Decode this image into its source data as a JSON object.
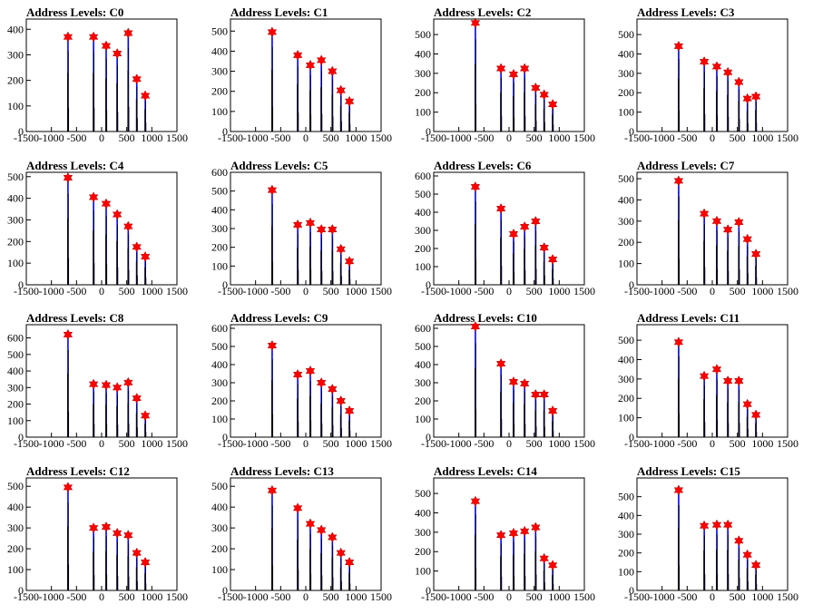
{
  "chart_data": [
    {
      "type": "histogram",
      "title": "Address Levels: C0",
      "xlim": [
        -1500,
        1500
      ],
      "ylim": [
        0,
        440
      ],
      "yticks": [
        0,
        100,
        200,
        300,
        400
      ],
      "xticks": [
        -1500,
        -1000,
        -500,
        0,
        500,
        1000,
        1500
      ],
      "peaks": [
        [
          -670,
          370
        ],
        [
          -160,
          370
        ],
        [
          90,
          335
        ],
        [
          310,
          305
        ],
        [
          530,
          385
        ],
        [
          700,
          205
        ],
        [
          870,
          140
        ]
      ]
    },
    {
      "type": "histogram",
      "title": "Address Levels: C1",
      "xlim": [
        -1500,
        1500
      ],
      "ylim": [
        0,
        560
      ],
      "yticks": [
        0,
        100,
        200,
        300,
        400,
        500
      ],
      "xticks": [
        -1500,
        -1000,
        -500,
        0,
        500,
        1000,
        1500
      ],
      "peaks": [
        [
          -670,
          495
        ],
        [
          -160,
          380
        ],
        [
          90,
          330
        ],
        [
          310,
          355
        ],
        [
          530,
          300
        ],
        [
          700,
          205
        ],
        [
          870,
          150
        ]
      ]
    },
    {
      "type": "histogram",
      "title": "Address Levels: C2",
      "xlim": [
        -1500,
        1500
      ],
      "ylim": [
        0,
        580
      ],
      "yticks": [
        0,
        100,
        200,
        300,
        400,
        500
      ],
      "xticks": [
        -1500,
        -1000,
        -500,
        0,
        500,
        1000,
        1500
      ],
      "peaks": [
        [
          -670,
          560
        ],
        [
          -160,
          325
        ],
        [
          90,
          295
        ],
        [
          310,
          325
        ],
        [
          530,
          225
        ],
        [
          700,
          190
        ],
        [
          870,
          140
        ]
      ]
    },
    {
      "type": "histogram",
      "title": "Address Levels: C3",
      "xlim": [
        -1500,
        1500
      ],
      "ylim": [
        0,
        580
      ],
      "yticks": [
        0,
        100,
        200,
        300,
        400,
        500
      ],
      "xticks": [
        -1500,
        -1000,
        -500,
        0,
        500,
        1000,
        1500
      ],
      "peaks": [
        [
          -670,
          440
        ],
        [
          -160,
          360
        ],
        [
          90,
          335
        ],
        [
          310,
          305
        ],
        [
          530,
          255
        ],
        [
          700,
          170
        ],
        [
          870,
          180
        ]
      ]
    },
    {
      "type": "histogram",
      "title": "Address Levels: C4",
      "xlim": [
        -1500,
        1500
      ],
      "ylim": [
        0,
        520
      ],
      "yticks": [
        0,
        100,
        200,
        300,
        400,
        500
      ],
      "xticks": [
        -1500,
        -1000,
        -500,
        0,
        500,
        1000,
        1500
      ],
      "peaks": [
        [
          -670,
          495
        ],
        [
          -160,
          405
        ],
        [
          90,
          375
        ],
        [
          310,
          325
        ],
        [
          530,
          270
        ],
        [
          700,
          175
        ],
        [
          870,
          130
        ]
      ]
    },
    {
      "type": "histogram",
      "title": "Address Levels: C5",
      "xlim": [
        -1500,
        1500
      ],
      "ylim": [
        0,
        600
      ],
      "yticks": [
        0,
        100,
        200,
        300,
        400,
        500,
        600
      ],
      "xticks": [
        -1500,
        -1000,
        -500,
        0,
        500,
        1000,
        1500
      ],
      "peaks": [
        [
          -670,
          505
        ],
        [
          -160,
          320
        ],
        [
          90,
          330
        ],
        [
          310,
          295
        ],
        [
          530,
          295
        ],
        [
          700,
          190
        ],
        [
          870,
          125
        ]
      ]
    },
    {
      "type": "histogram",
      "title": "Address Levels: C6",
      "xlim": [
        -1500,
        1500
      ],
      "ylim": [
        0,
        620
      ],
      "yticks": [
        0,
        100,
        200,
        300,
        400,
        500,
        600
      ],
      "xticks": [
        -1500,
        -1000,
        -500,
        0,
        500,
        1000,
        1500
      ],
      "peaks": [
        [
          -670,
          540
        ],
        [
          -160,
          420
        ],
        [
          90,
          280
        ],
        [
          310,
          320
        ],
        [
          530,
          350
        ],
        [
          700,
          205
        ],
        [
          870,
          140
        ]
      ]
    },
    {
      "type": "histogram",
      "title": "Address Levels: C7",
      "xlim": [
        -1500,
        1500
      ],
      "ylim": [
        0,
        530
      ],
      "yticks": [
        0,
        100,
        200,
        300,
        400,
        500
      ],
      "xticks": [
        -1500,
        -1000,
        -500,
        0,
        500,
        1000,
        1500
      ],
      "peaks": [
        [
          -670,
          490
        ],
        [
          -160,
          335
        ],
        [
          90,
          300
        ],
        [
          310,
          260
        ],
        [
          530,
          295
        ],
        [
          700,
          215
        ],
        [
          870,
          145
        ]
      ]
    },
    {
      "type": "histogram",
      "title": "Address Levels: C8",
      "xlim": [
        -1500,
        1500
      ],
      "ylim": [
        0,
        680
      ],
      "yticks": [
        0,
        100,
        200,
        300,
        400,
        500,
        600
      ],
      "xticks": [
        -1500,
        -1000,
        -500,
        0,
        500,
        1000,
        1500
      ],
      "peaks": [
        [
          -670,
          620
        ],
        [
          -160,
          320
        ],
        [
          90,
          315
        ],
        [
          310,
          300
        ],
        [
          530,
          330
        ],
        [
          700,
          235
        ],
        [
          870,
          130
        ]
      ]
    },
    {
      "type": "histogram",
      "title": "Address Levels: C9",
      "xlim": [
        -1500,
        1500
      ],
      "ylim": [
        0,
        620
      ],
      "yticks": [
        0,
        100,
        200,
        300,
        400,
        500,
        600
      ],
      "xticks": [
        -1500,
        -1000,
        -500,
        0,
        500,
        1000,
        1500
      ],
      "peaks": [
        [
          -670,
          505
        ],
        [
          -160,
          345
        ],
        [
          90,
          365
        ],
        [
          310,
          300
        ],
        [
          530,
          265
        ],
        [
          700,
          200
        ],
        [
          870,
          145
        ]
      ]
    },
    {
      "type": "histogram",
      "title": "Address Levels: C10",
      "xlim": [
        -1500,
        1500
      ],
      "ylim": [
        0,
        620
      ],
      "yticks": [
        0,
        100,
        200,
        300,
        400,
        500,
        600
      ],
      "xticks": [
        -1500,
        -1000,
        -500,
        0,
        500,
        1000,
        1500
      ],
      "peaks": [
        [
          -670,
          610
        ],
        [
          -160,
          405
        ],
        [
          90,
          305
        ],
        [
          310,
          295
        ],
        [
          530,
          235
        ],
        [
          700,
          235
        ],
        [
          870,
          145
        ]
      ]
    },
    {
      "type": "histogram",
      "title": "Address Levels: C11",
      "xlim": [
        -1500,
        1500
      ],
      "ylim": [
        0,
        580
      ],
      "yticks": [
        0,
        100,
        200,
        300,
        400,
        500
      ],
      "xticks": [
        -1500,
        -1000,
        -500,
        0,
        500,
        1000,
        1500
      ],
      "peaks": [
        [
          -670,
          490
        ],
        [
          -160,
          315
        ],
        [
          90,
          350
        ],
        [
          310,
          290
        ],
        [
          530,
          290
        ],
        [
          700,
          170
        ],
        [
          870,
          115
        ]
      ]
    },
    {
      "type": "histogram",
      "title": "Address Levels: C12",
      "xlim": [
        -1500,
        1500
      ],
      "ylim": [
        0,
        540
      ],
      "yticks": [
        0,
        100,
        200,
        300,
        400,
        500
      ],
      "xticks": [
        -1500,
        -1000,
        -500,
        0,
        500,
        1000,
        1500
      ],
      "peaks": [
        [
          -670,
          495
        ],
        [
          -160,
          300
        ],
        [
          90,
          305
        ],
        [
          310,
          275
        ],
        [
          530,
          265
        ],
        [
          700,
          180
        ],
        [
          870,
          135
        ]
      ]
    },
    {
      "type": "histogram",
      "title": "Address Levels: C13",
      "xlim": [
        -1500,
        1500
      ],
      "ylim": [
        0,
        540
      ],
      "yticks": [
        0,
        100,
        200,
        300,
        400,
        500
      ],
      "xticks": [
        -1500,
        -1000,
        -500,
        0,
        500,
        1000,
        1500
      ],
      "peaks": [
        [
          -670,
          480
        ],
        [
          -160,
          395
        ],
        [
          90,
          320
        ],
        [
          310,
          290
        ],
        [
          530,
          255
        ],
        [
          700,
          180
        ],
        [
          870,
          135
        ]
      ]
    },
    {
      "type": "histogram",
      "title": "Address Levels: C14",
      "xlim": [
        -1500,
        1500
      ],
      "ylim": [
        0,
        580
      ],
      "yticks": [
        0,
        100,
        200,
        300,
        400,
        500
      ],
      "xticks": [
        -1500,
        -1000,
        -500,
        0,
        500,
        1000,
        1500
      ],
      "peaks": [
        [
          -670,
          460
        ],
        [
          -160,
          285
        ],
        [
          90,
          295
        ],
        [
          310,
          305
        ],
        [
          530,
          325
        ],
        [
          700,
          165
        ],
        [
          870,
          130
        ]
      ]
    },
    {
      "type": "histogram",
      "title": "Address Levels: C15",
      "xlim": [
        -1500,
        1500
      ],
      "ylim": [
        0,
        600
      ],
      "yticks": [
        0,
        100,
        200,
        300,
        400,
        500
      ],
      "xticks": [
        -1500,
        -1000,
        -500,
        0,
        500,
        1000,
        1500
      ],
      "peaks": [
        [
          -670,
          535
        ],
        [
          -160,
          345
        ],
        [
          90,
          350
        ],
        [
          310,
          350
        ],
        [
          530,
          265
        ],
        [
          700,
          190
        ],
        [
          870,
          135
        ]
      ]
    }
  ],
  "colors": {
    "histogram": "#0000ff",
    "marker": "#ff0000",
    "frame": "#000000"
  }
}
